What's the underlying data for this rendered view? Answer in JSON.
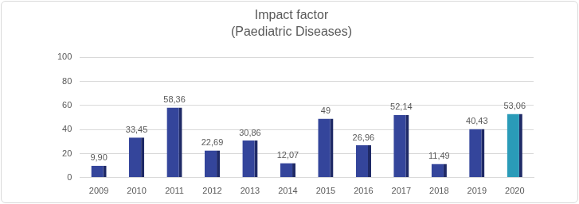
{
  "chart_data": {
    "type": "bar",
    "title": "Impact factor",
    "subtitle": "(Paediatric Diseases)",
    "categories": [
      "2009",
      "2010",
      "2011",
      "2012",
      "2013",
      "2014",
      "2015",
      "2016",
      "2017",
      "2018",
      "2019",
      "2020"
    ],
    "values": [
      9.9,
      33.45,
      58.36,
      22.69,
      30.86,
      12.07,
      49,
      26.96,
      52.14,
      11.49,
      40.43,
      53.06
    ],
    "value_labels": [
      "9,90",
      "33,45",
      "58,36",
      "22,69",
      "30,86",
      "12,07",
      "49",
      "26,96",
      "52,14",
      "11,49",
      "40,43",
      "53,06"
    ],
    "colors": [
      "#34459b",
      "#34459b",
      "#34459b",
      "#34459b",
      "#34459b",
      "#34459b",
      "#34459b",
      "#34459b",
      "#34459b",
      "#34459b",
      "#34459b",
      "#2a9bb8"
    ],
    "ylim": [
      0,
      100
    ],
    "yticks": [
      0,
      20,
      40,
      60,
      80,
      100
    ],
    "grid": true,
    "data_labels": true
  }
}
